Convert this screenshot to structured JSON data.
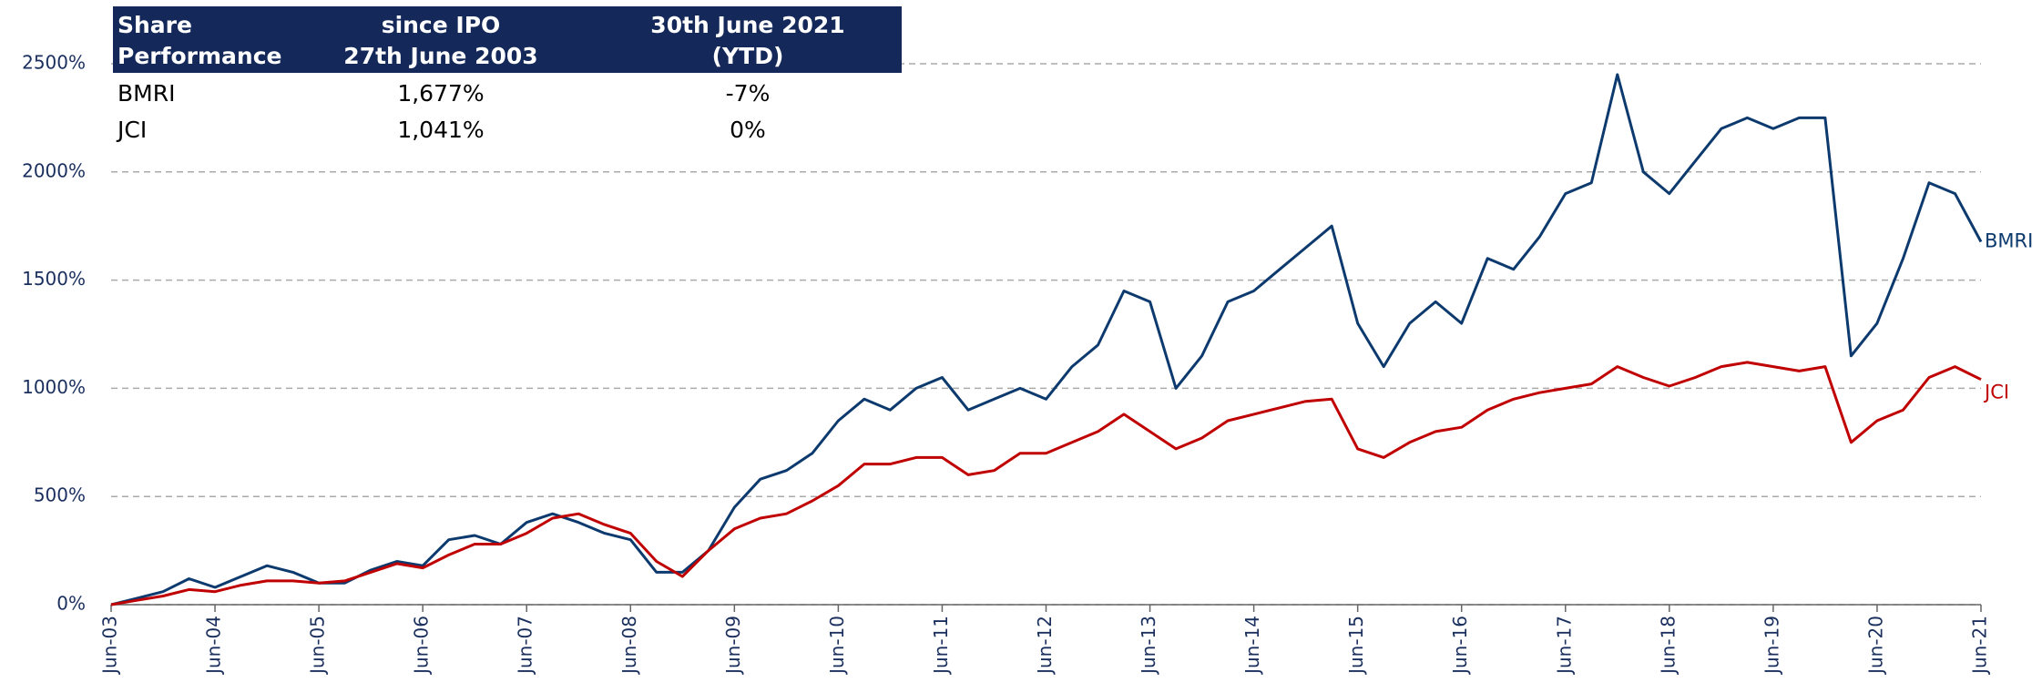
{
  "chart_data": {
    "type": "line",
    "x": [
      "Jun-03",
      "Sep-03",
      "Dec-03",
      "Mar-04",
      "Jun-04",
      "Sep-04",
      "Dec-04",
      "Mar-05",
      "Jun-05",
      "Sep-05",
      "Dec-05",
      "Mar-06",
      "Jun-06",
      "Sep-06",
      "Dec-06",
      "Mar-07",
      "Jun-07",
      "Sep-07",
      "Dec-07",
      "Mar-08",
      "Jun-08",
      "Sep-08",
      "Dec-08",
      "Mar-09",
      "Jun-09",
      "Sep-09",
      "Dec-09",
      "Mar-10",
      "Jun-10",
      "Sep-10",
      "Dec-10",
      "Mar-11",
      "Jun-11",
      "Sep-11",
      "Dec-11",
      "Mar-12",
      "Jun-12",
      "Sep-12",
      "Dec-12",
      "Mar-13",
      "Jun-13",
      "Sep-13",
      "Dec-13",
      "Mar-14",
      "Jun-14",
      "Sep-14",
      "Dec-14",
      "Mar-15",
      "Jun-15",
      "Sep-15",
      "Dec-15",
      "Mar-16",
      "Jun-16",
      "Sep-16",
      "Dec-16",
      "Mar-17",
      "Jun-17",
      "Sep-17",
      "Dec-17",
      "Mar-18",
      "Jun-18",
      "Sep-18",
      "Dec-18",
      "Mar-19",
      "Jun-19",
      "Sep-19",
      "Dec-19",
      "Mar-20",
      "Jun-20",
      "Sep-20",
      "Dec-20",
      "Mar-21",
      "Jun-21"
    ],
    "xticks": [
      "Jun-03",
      "Jun-04",
      "Jun-05",
      "Jun-06",
      "Jun-07",
      "Jun-08",
      "Jun-09",
      "Jun-10",
      "Jun-11",
      "Jun-12",
      "Jun-13",
      "Jun-14",
      "Jun-15",
      "Jun-16",
      "Jun-17",
      "Jun-18",
      "Jun-19",
      "Jun-20",
      "Jun-21"
    ],
    "series": [
      {
        "name": "BMRI",
        "color": "#0d3a6e",
        "values": [
          0,
          30,
          60,
          120,
          80,
          130,
          180,
          150,
          100,
          100,
          160,
          200,
          180,
          300,
          320,
          280,
          380,
          420,
          380,
          330,
          300,
          150,
          150,
          250,
          450,
          580,
          620,
          700,
          850,
          950,
          900,
          1000,
          1050,
          900,
          950,
          1000,
          950,
          1100,
          1200,
          1450,
          1400,
          1000,
          1150,
          1400,
          1450,
          1550,
          1650,
          1750,
          1300,
          1100,
          1300,
          1400,
          1300,
          1600,
          1550,
          1700,
          1900,
          1950,
          2450,
          2000,
          1900,
          2050,
          2200,
          2250,
          2200,
          2250,
          2250,
          1150,
          1300,
          1600,
          1950,
          1900,
          1677
        ]
      },
      {
        "name": "JCI",
        "color": "#c00000",
        "values": [
          0,
          20,
          40,
          70,
          60,
          90,
          110,
          110,
          100,
          110,
          150,
          190,
          170,
          230,
          280,
          280,
          330,
          400,
          420,
          370,
          330,
          200,
          130,
          250,
          350,
          400,
          420,
          480,
          550,
          650,
          650,
          680,
          680,
          600,
          620,
          700,
          700,
          750,
          800,
          880,
          800,
          720,
          770,
          850,
          880,
          910,
          940,
          950,
          720,
          680,
          750,
          800,
          820,
          900,
          950,
          980,
          1000,
          1020,
          1100,
          1050,
          1010,
          1050,
          1100,
          1120,
          1100,
          1080,
          1100,
          750,
          850,
          900,
          1050,
          1100,
          1041
        ]
      }
    ],
    "ylim": [
      0,
      2500
    ],
    "yticks": [
      {
        "value": 0,
        "label": "0%"
      },
      {
        "value": 500,
        "label": "500%"
      },
      {
        "value": 1000,
        "label": "1000%"
      },
      {
        "value": 1500,
        "label": "1500%"
      },
      {
        "value": 2000,
        "label": "2000%"
      },
      {
        "value": 2500,
        "label": "2500%"
      }
    ],
    "grid": true
  },
  "table": {
    "header": [
      [
        "Share",
        "Performance"
      ],
      [
        "since IPO",
        "27th June 2003"
      ],
      [
        "30th June 2021",
        "(YTD)"
      ]
    ],
    "rows": [
      [
        "BMRI",
        "1,677%",
        "-7%"
      ],
      [
        "JCI",
        "1,041%",
        "0%"
      ]
    ]
  }
}
